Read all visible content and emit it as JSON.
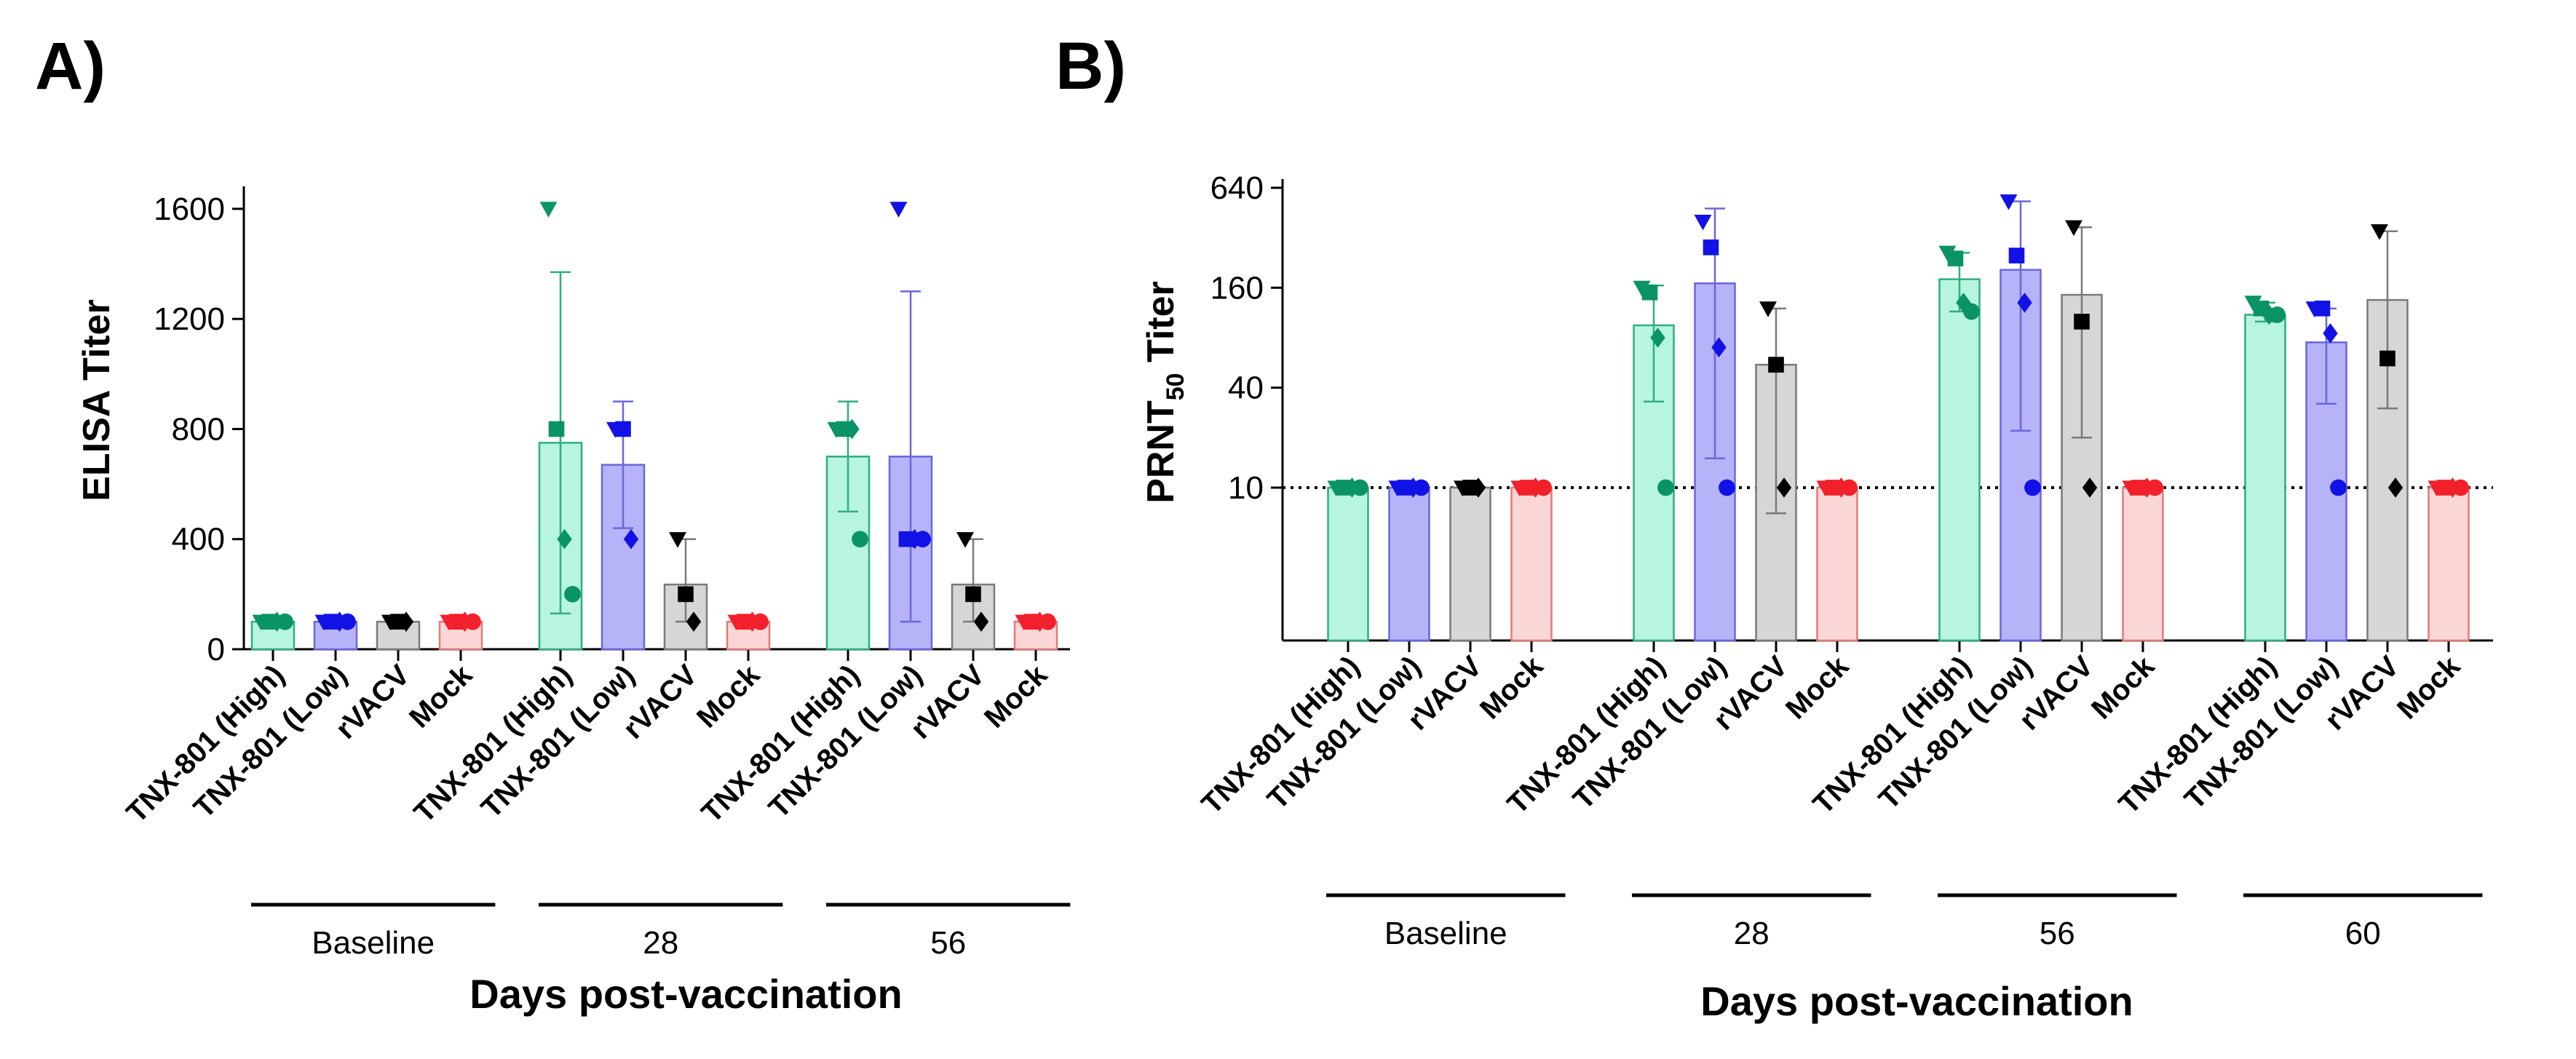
{
  "chart_data": [
    {
      "panel": "A)",
      "type": "bar",
      "yscale": "linear",
      "ylabel": "ELISA Titer",
      "xlabel": "Days post-vaccination",
      "ylim": [
        0,
        1650
      ],
      "yticks": [
        0,
        400,
        800,
        1200,
        1600
      ],
      "ytick_labels": [
        "0",
        "400",
        "800",
        "1200",
        "1600"
      ],
      "reference_line": null,
      "groups": [
        {
          "name": "Baseline",
          "bars": [
            {
              "label": "TNX-801 (High)",
              "value": 100,
              "err": null,
              "points": [
                100,
                100,
                100,
                100
              ]
            },
            {
              "label": "TNX-801 (Low)",
              "value": 100,
              "err": null,
              "points": [
                100,
                100,
                100,
                100
              ]
            },
            {
              "label": "rVACV",
              "value": 100,
              "err": null,
              "points": [
                100,
                100,
                100
              ]
            },
            {
              "label": "Mock",
              "value": 100,
              "err": null,
              "points": [
                100,
                100,
                100,
                100
              ]
            }
          ]
        },
        {
          "name": "28",
          "bars": [
            {
              "label": "TNX-801 (High)",
              "value": 750,
              "err": [
                130,
                1370
              ],
              "points": [
                1600,
                800,
                400,
                200
              ]
            },
            {
              "label": "TNX-801 (Low)",
              "value": 670,
              "err": [
                440,
                900
              ],
              "points": [
                800,
                800,
                400
              ]
            },
            {
              "label": "rVACV",
              "value": 235,
              "err": [
                100,
                400
              ],
              "points": [
                400,
                200,
                100
              ]
            },
            {
              "label": "Mock",
              "value": 100,
              "err": null,
              "points": [
                100,
                100,
                100,
                100
              ]
            }
          ]
        },
        {
          "name": "56",
          "bars": [
            {
              "label": "TNX-801 (High)",
              "value": 700,
              "err": [
                500,
                900
              ],
              "points": [
                800,
                800,
                800,
                400
              ]
            },
            {
              "label": "TNX-801 (Low)",
              "value": 700,
              "err": [
                100,
                1300
              ],
              "points": [
                1600,
                400,
                400,
                400
              ]
            },
            {
              "label": "rVACV",
              "value": 235,
              "err": [
                100,
                400
              ],
              "points": [
                400,
                200,
                100
              ]
            },
            {
              "label": "Mock",
              "value": 100,
              "err": null,
              "points": [
                100,
                100,
                100,
                100
              ]
            }
          ]
        }
      ]
    },
    {
      "panel": "B)",
      "type": "bar",
      "yscale": "log2",
      "ylabel": "PRNT",
      "ylabel_sub": "50",
      "ylabel_suffix": " Titer",
      "xlabel": "Days post-vaccination",
      "ylim": [
        1.2,
        640
      ],
      "yticks": [
        10,
        40,
        160,
        640
      ],
      "ytick_labels": [
        "10",
        "40",
        "160",
        "640"
      ],
      "reference_line": 10,
      "groups": [
        {
          "name": "Baseline",
          "bars": [
            {
              "label": "TNX-801 (High)",
              "value": 10,
              "err": null,
              "points": [
                10,
                10,
                10,
                10
              ]
            },
            {
              "label": "TNX-801 (Low)",
              "value": 10,
              "err": null,
              "points": [
                10,
                10,
                10,
                10
              ]
            },
            {
              "label": "rVACV",
              "value": 10,
              "err": null,
              "points": [
                10,
                10,
                10
              ]
            },
            {
              "label": "Mock",
              "value": 10,
              "err": null,
              "points": [
                10,
                10,
                10,
                10
              ]
            }
          ]
        },
        {
          "name": "28",
          "bars": [
            {
              "label": "TNX-801 (High)",
              "value": 95,
              "err": [
                33,
                165
              ],
              "points": [
                160,
                150,
                80,
                10
              ]
            },
            {
              "label": "TNX-801 (Low)",
              "value": 170,
              "err": [
                15,
                480
              ],
              "points": [
                400,
                280,
                70,
                10
              ]
            },
            {
              "label": "rVACV",
              "value": 55,
              "err": [
                7,
                120
              ],
              "points": [
                120,
                55,
                10
              ]
            },
            {
              "label": "Mock",
              "value": 10,
              "err": null,
              "points": [
                10,
                10,
                10,
                10
              ]
            }
          ]
        },
        {
          "name": "56",
          "bars": [
            {
              "label": "TNX-801 (High)",
              "value": 180,
              "err": [
                115,
                260
              ],
              "points": [
                260,
                240,
                130,
                115
              ]
            },
            {
              "label": "TNX-801 (Low)",
              "value": 205,
              "err": [
                22,
                530
              ],
              "points": [
                530,
                250,
                130,
                10
              ]
            },
            {
              "label": "rVACV",
              "value": 145,
              "err": [
                20,
                370
              ],
              "points": [
                370,
                100,
                10
              ]
            },
            {
              "label": "Mock",
              "value": 10,
              "err": null,
              "points": [
                10,
                10,
                10,
                10
              ]
            }
          ]
        },
        {
          "name": "60",
          "bars": [
            {
              "label": "TNX-801 (High)",
              "value": 110,
              "err": [
                100,
                130
              ],
              "points": [
                130,
                120,
                110,
                110
              ]
            },
            {
              "label": "TNX-801 (Low)",
              "value": 75,
              "err": [
                32,
                120
              ],
              "points": [
                120,
                120,
                85,
                10
              ]
            },
            {
              "label": "rVACV",
              "value": 135,
              "err": [
                30,
                350
              ],
              "points": [
                350,
                60,
                10
              ]
            },
            {
              "label": "Mock",
              "value": 10,
              "err": null,
              "points": [
                10,
                10,
                10,
                10
              ]
            }
          ]
        }
      ]
    }
  ],
  "series_style": {
    "TNX-801 (High)": {
      "fill": "#b7f5df",
      "stroke": "#2fae7e",
      "marker": "#0a9465"
    },
    "TNX-801 (Low)": {
      "fill": "#b7b3f8",
      "stroke": "#6a66dc",
      "marker": "#1212e6"
    },
    "rVACV": {
      "fill": "#d6d6d6",
      "stroke": "#7a7a7a",
      "marker": "#000000"
    },
    "Mock": {
      "fill": "#fbd6d6",
      "stroke": "#e07a7a",
      "marker": "#f2202a"
    }
  },
  "marker_shapes": [
    "triangle-down",
    "square",
    "diamond",
    "circle"
  ]
}
